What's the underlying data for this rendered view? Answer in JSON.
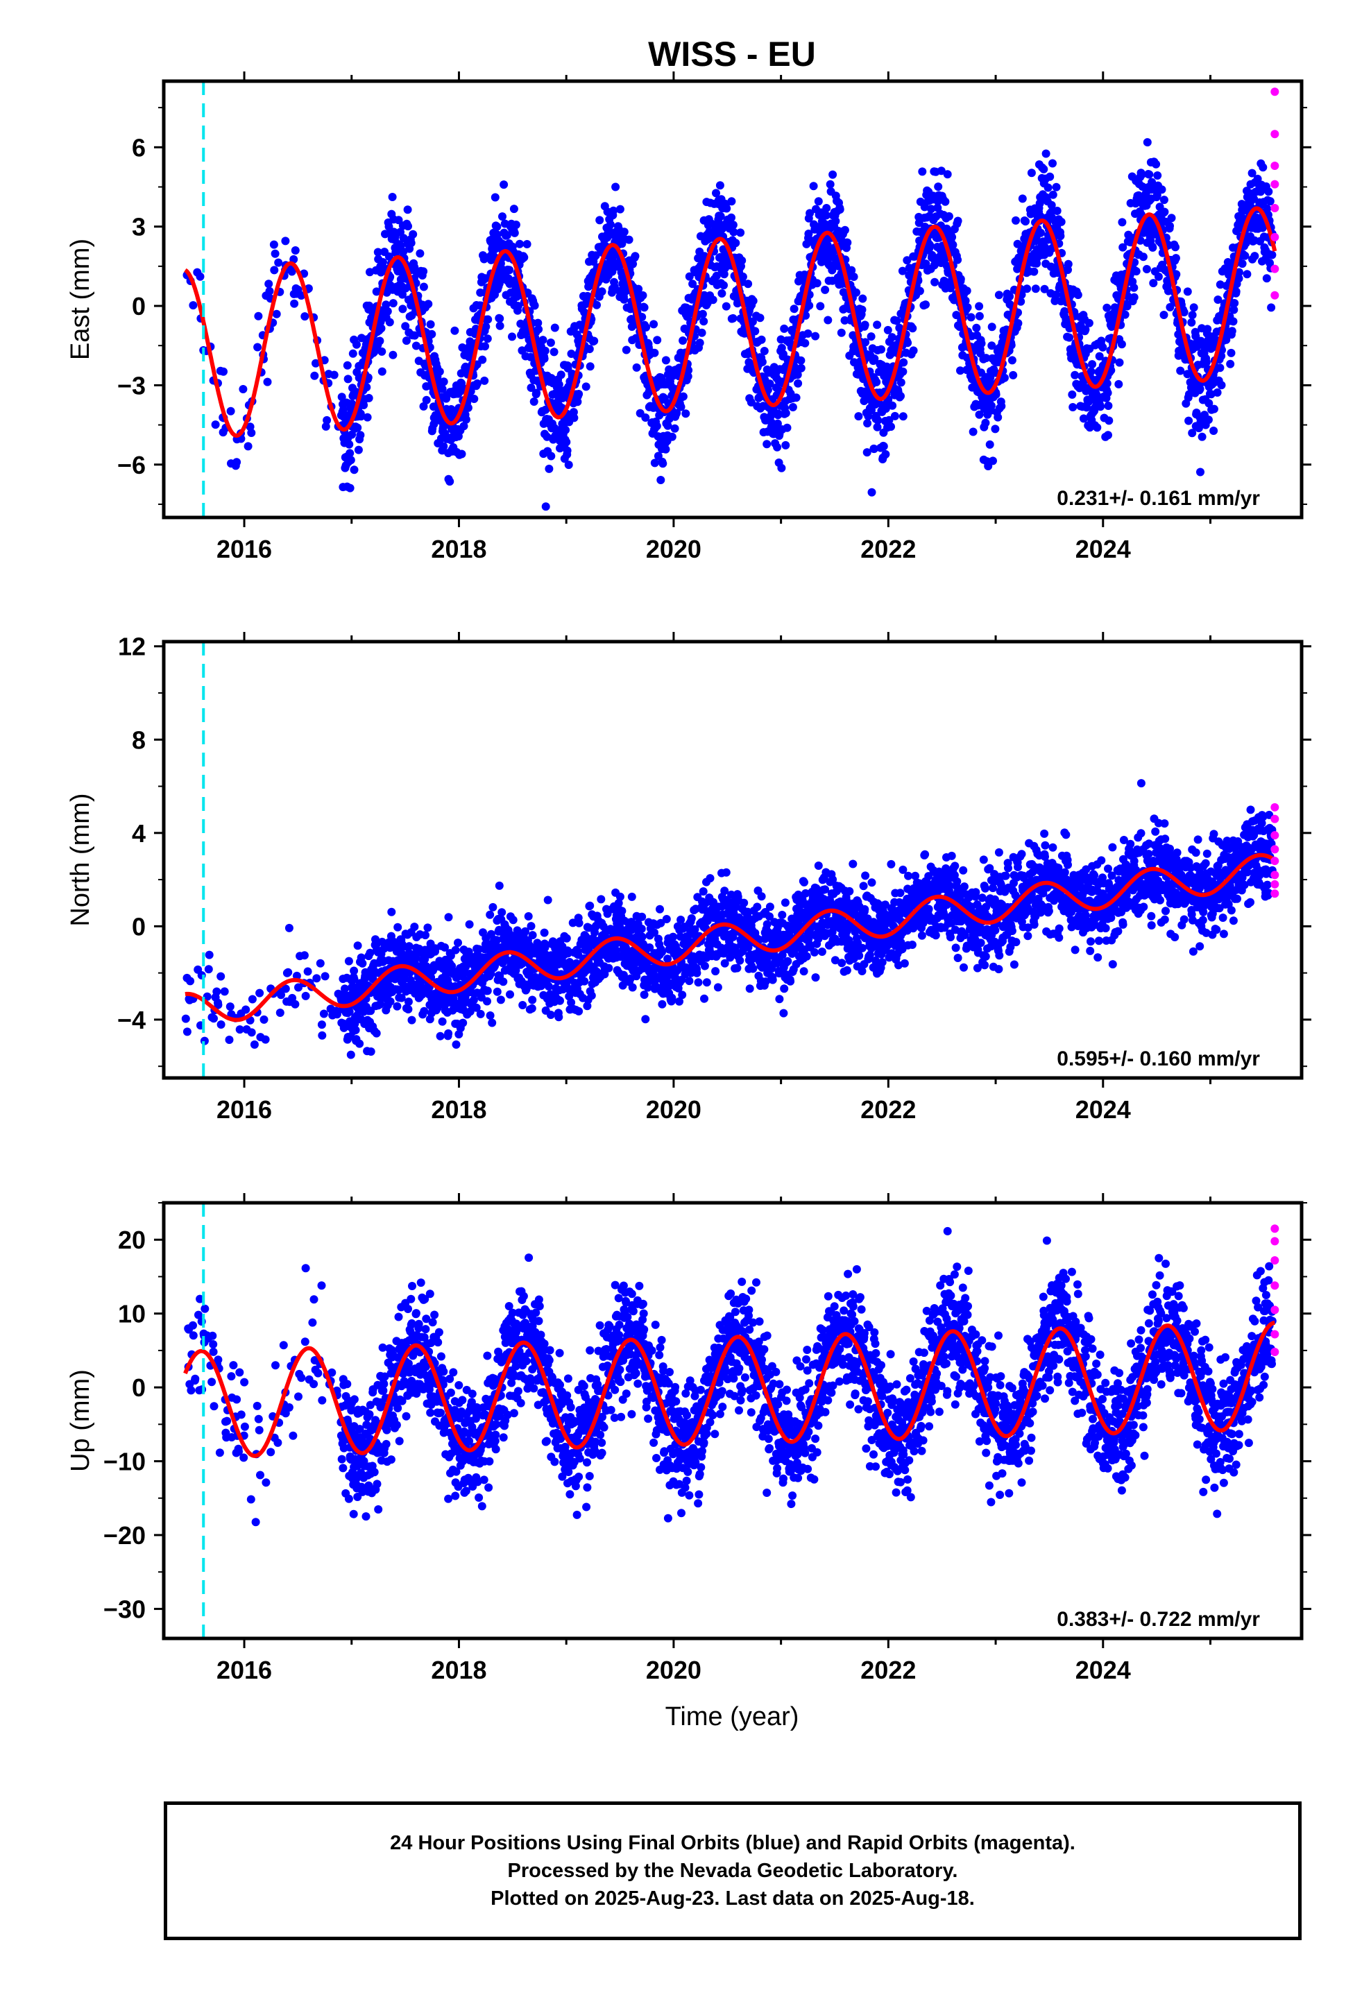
{
  "title": "WISS - EU",
  "xlabel": "Time (year)",
  "footer": {
    "line1": "24 Hour Positions Using Final Orbits (blue) and Rapid Orbits (magenta).",
    "line2": "Processed by the Nevada Geodetic Laboratory.",
    "line3": "Plotted on 2025-Aug-23. Last data on 2025-Aug-18."
  },
  "colors": {
    "final_orbits": "#0000ff",
    "rapid_orbits": "#ff00ff",
    "model_fit": "#ff0000",
    "event_marker": "#00e5ee"
  },
  "chart_data": [
    {
      "type": "scatter",
      "panel": "east",
      "ylabel": "East (mm)",
      "xlim": [
        2015.25,
        2025.85
      ],
      "ylim": [
        -8,
        8.5
      ],
      "xticks": [
        2016,
        2018,
        2020,
        2022,
        2024
      ],
      "yticks": [
        -6,
        -3,
        0,
        3,
        6
      ],
      "ytick_labels": [
        "−6",
        "−3",
        "0",
        "3",
        "6"
      ],
      "event_marker_x": 2015.62,
      "rate_label": "0.231+/- 0.161 mm/yr",
      "model": {
        "trend_mm_per_yr": 0.231,
        "intercept_mm": -0.65,
        "annual_amplitude_mm": 3.2,
        "peak_fraction": 0.43,
        "semiannual_amplitude_mm": 0.0
      },
      "scatter": {
        "final_std_mm": 1.05,
        "final_range": [
          2015.45,
          2025.58
        ]
      },
      "series": [
        {
          "name": "Final Orbits (blue)",
          "points": "generated from model with scatter"
        },
        {
          "name": "Rapid Orbits (magenta)",
          "x": [
            2025.6,
            2025.6,
            2025.6,
            2025.6,
            2025.6,
            2025.6,
            2025.6,
            2025.6
          ],
          "y": [
            8.1,
            6.5,
            5.3,
            4.6,
            3.7,
            2.6,
            1.4,
            0.4
          ]
        }
      ]
    },
    {
      "type": "scatter",
      "panel": "north",
      "ylabel": "North (mm)",
      "xlim": [
        2015.25,
        2025.85
      ],
      "ylim": [
        -6.5,
        12.2
      ],
      "xticks": [
        2016,
        2018,
        2020,
        2022,
        2024
      ],
      "yticks": [
        -4,
        0,
        4,
        8,
        12
      ],
      "ytick_labels": [
        "−4",
        "0",
        "4",
        "8",
        "12"
      ],
      "event_marker_x": 2015.62,
      "rate_label": "0.595+/- 0.160 mm/yr",
      "model": {
        "trend_mm_per_yr": 0.595,
        "intercept_mm": -0.6,
        "annual_amplitude_mm": 0.7,
        "peak_fraction": 0.45,
        "semiannual_amplitude_mm": 0.0
      },
      "scatter": {
        "final_std_mm": 0.9,
        "final_range": [
          2015.45,
          2025.58
        ]
      },
      "series": [
        {
          "name": "Final Orbits (blue)",
          "points": "generated from model with scatter"
        },
        {
          "name": "Rapid Orbits (magenta)",
          "x": [
            2025.6,
            2025.6,
            2025.6,
            2025.6,
            2025.6,
            2025.6,
            2025.6,
            2025.6
          ],
          "y": [
            5.1,
            4.6,
            3.9,
            3.3,
            2.8,
            2.2,
            1.8,
            1.4
          ]
        }
      ]
    },
    {
      "type": "scatter",
      "panel": "up",
      "ylabel": "Up (mm)",
      "xlim": [
        2015.25,
        2025.85
      ],
      "ylim": [
        -34,
        25
      ],
      "xticks": [
        2016,
        2018,
        2020,
        2022,
        2024
      ],
      "yticks": [
        -30,
        -20,
        -10,
        0,
        10,
        20
      ],
      "ytick_labels": [
        "−30",
        "−20",
        "−10",
        "0",
        "10",
        "20"
      ],
      "event_marker_x": 2015.62,
      "rate_label": "0.383+/- 0.722 mm/yr",
      "model": {
        "trend_mm_per_yr": 0.383,
        "intercept_mm": -0.4,
        "annual_amplitude_mm": 7.2,
        "peak_fraction": 0.6,
        "semiannual_amplitude_mm": 0.0
      },
      "scatter": {
        "final_std_mm": 3.9,
        "final_range": [
          2015.45,
          2025.58
        ]
      },
      "series": [
        {
          "name": "Final Orbits (blue)",
          "points": "generated from model with scatter"
        },
        {
          "name": "Rapid Orbits (magenta)",
          "x": [
            2025.6,
            2025.6,
            2025.6,
            2025.6,
            2025.6,
            2025.6,
            2025.6
          ],
          "y": [
            21.5,
            19.8,
            17.2,
            13.8,
            10.5,
            7.2,
            4.8
          ]
        }
      ]
    }
  ]
}
